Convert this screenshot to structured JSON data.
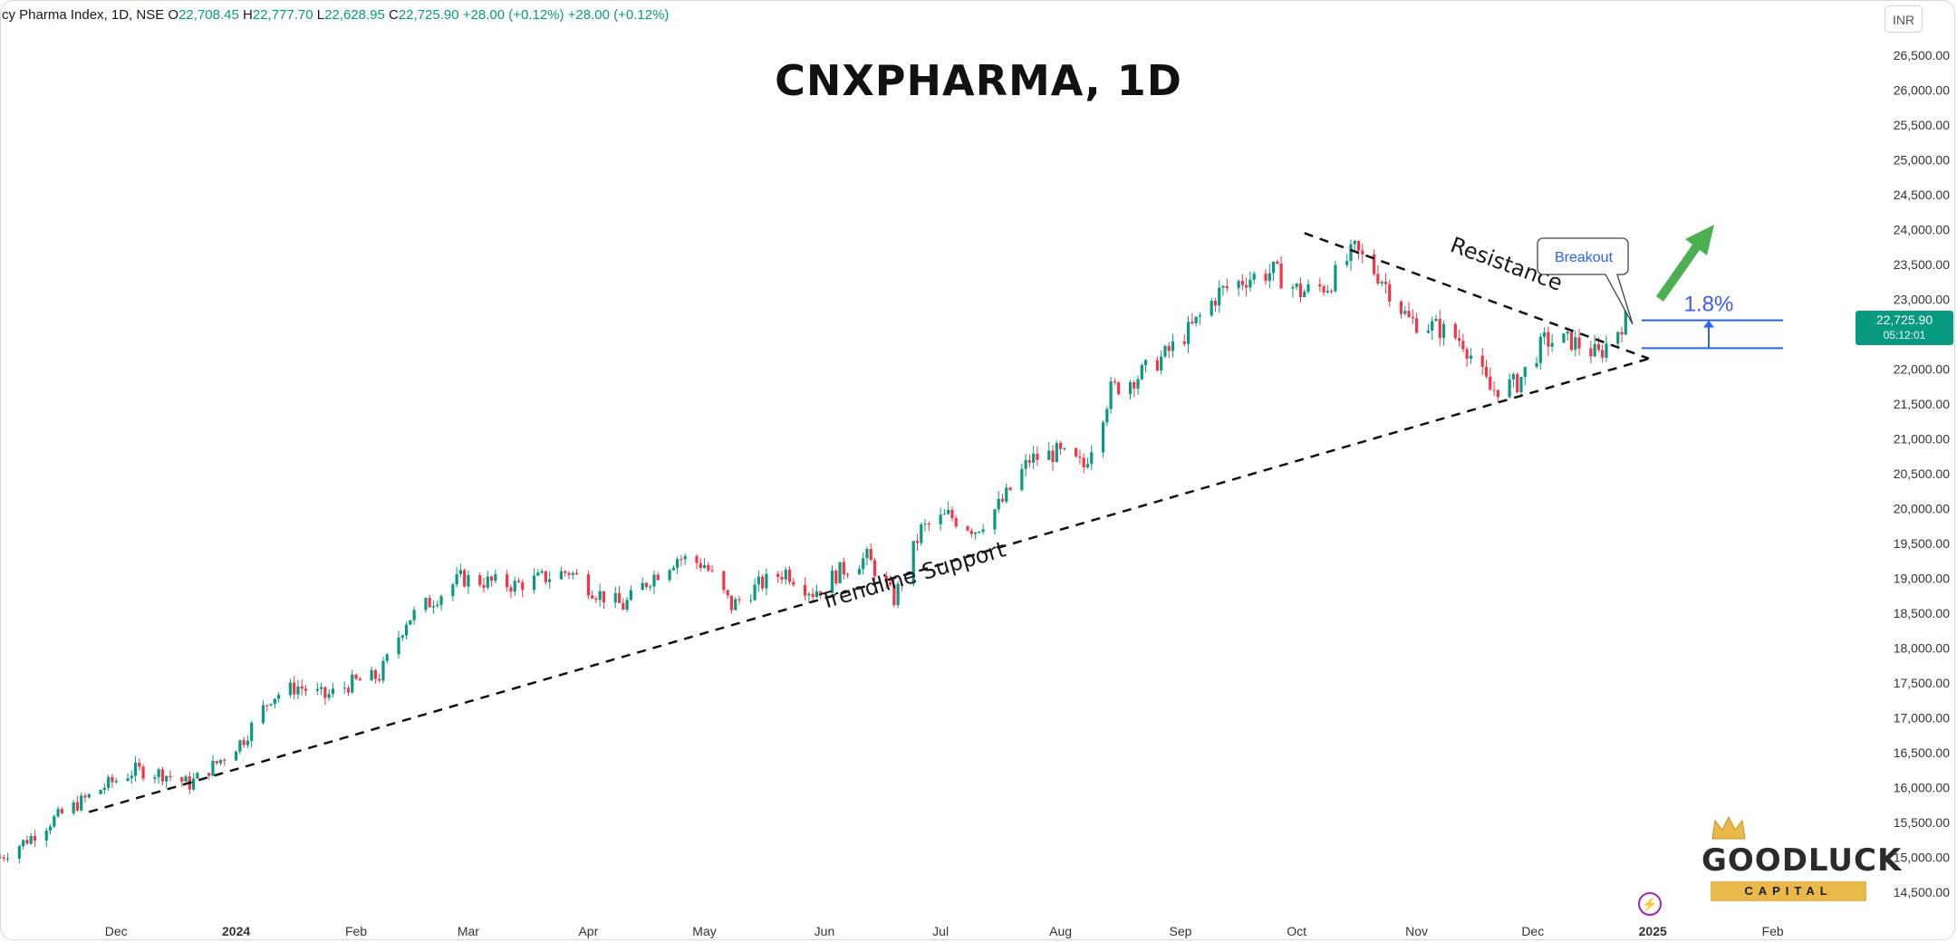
{
  "info_bar": {
    "name": "cy Pharma Index, 1D, NSE",
    "open_label": "O",
    "open": "22,708.45",
    "high_label": "H",
    "high": "22,777.70",
    "low_label": "L",
    "low": "22,628.95",
    "close_label": "C",
    "close": "22,725.90",
    "change": "+28.00 (+0.12%)",
    "change2": "+28.00 (+0.12%)"
  },
  "currency": "INR",
  "price_tag": {
    "price": "22,725.90",
    "timer": "05:12:01"
  },
  "logo": {
    "word": "GOODLUCK",
    "sub": "CAPITAL"
  },
  "colors": {
    "up": "#089981",
    "down": "#f23645",
    "accent": "#2962ff",
    "arrow": "#4caf50",
    "logo_gold": "#e8b84a"
  },
  "chart_data": {
    "type": "candlestick",
    "title": "CNXPHARMA, 1D",
    "y_ticks": [
      14500,
      15000,
      15500,
      16000,
      16500,
      17000,
      17500,
      18000,
      18500,
      19000,
      19500,
      20000,
      20500,
      21000,
      21500,
      22000,
      22500,
      23000,
      23500,
      24000,
      24500,
      25000,
      25500,
      26000,
      26500
    ],
    "y_tick_labels": [
      "14,500.00",
      "15,000.00",
      "15,500.00",
      "16,000.00",
      "16,500.00",
      "17,000.00",
      "17,500.00",
      "18,000.00",
      "18,500.00",
      "19,000.00",
      "19,500.00",
      "20,000.00",
      "20,500.00",
      "21,000.00",
      "21,500.00",
      "22,000.00",
      "22,500.00",
      "23,000.00",
      "23,500.00",
      "24,000.00",
      "24,500.00",
      "25,000.00",
      "25,500.00",
      "26,000.00",
      "26,500.00"
    ],
    "ylim": [
      14300,
      26800
    ],
    "x_ticks": [
      "Dec",
      "2024",
      "Feb",
      "Mar",
      "Apr",
      "May",
      "Jun",
      "Jul",
      "Aug",
      "Sep",
      "Oct",
      "Nov",
      "Dec",
      "2025",
      "Feb"
    ],
    "x_tick_dates": [
      "2023-12-01",
      "2024-01-01",
      "2024-02-01",
      "2024-03-01",
      "2024-04-01",
      "2024-05-01",
      "2024-06-01",
      "2024-07-01",
      "2024-08-01",
      "2024-09-01",
      "2024-10-01",
      "2024-11-01",
      "2024-12-01",
      "2025-01-01",
      "2025-02-01"
    ],
    "x_bold_ticks": [
      "2024",
      "2025"
    ],
    "trend_path": [
      [
        "2023-11-01",
        15000
      ],
      [
        "2023-11-08",
        15250
      ],
      [
        "2023-11-15",
        15550
      ],
      [
        "2023-11-22",
        15800
      ],
      [
        "2023-11-29",
        16050
      ],
      [
        "2023-12-06",
        16250
      ],
      [
        "2023-12-13",
        16200
      ],
      [
        "2023-12-20",
        16050
      ],
      [
        "2023-12-27",
        16350
      ],
      [
        "2024-01-03",
        16700
      ],
      [
        "2024-01-10",
        17300
      ],
      [
        "2024-01-17",
        17450
      ],
      [
        "2024-01-24",
        17300
      ],
      [
        "2024-01-31",
        17500
      ],
      [
        "2024-02-07",
        17600
      ],
      [
        "2024-02-14",
        18400
      ],
      [
        "2024-02-21",
        18700
      ],
      [
        "2024-02-28",
        19000
      ],
      [
        "2024-03-06",
        18950
      ],
      [
        "2024-03-13",
        18900
      ],
      [
        "2024-03-20",
        19000
      ],
      [
        "2024-03-27",
        19100
      ],
      [
        "2024-04-03",
        18800
      ],
      [
        "2024-04-10",
        18600
      ],
      [
        "2024-04-17",
        19000
      ],
      [
        "2024-04-24",
        19300
      ],
      [
        "2024-05-01",
        19200
      ],
      [
        "2024-05-08",
        18600
      ],
      [
        "2024-05-15",
        18900
      ],
      [
        "2024-05-22",
        19100
      ],
      [
        "2024-05-29",
        18800
      ],
      [
        "2024-06-05",
        19100
      ],
      [
        "2024-06-12",
        19300
      ],
      [
        "2024-06-19",
        18700
      ],
      [
        "2024-06-26",
        19700
      ],
      [
        "2024-07-03",
        19900
      ],
      [
        "2024-07-10",
        19700
      ],
      [
        "2024-07-17",
        20100
      ],
      [
        "2024-07-24",
        20700
      ],
      [
        "2024-07-31",
        20800
      ],
      [
        "2024-08-07",
        20600
      ],
      [
        "2024-08-14",
        21700
      ],
      [
        "2024-08-21",
        21900
      ],
      [
        "2024-08-28",
        22200
      ],
      [
        "2024-09-04",
        22600
      ],
      [
        "2024-09-11",
        23100
      ],
      [
        "2024-09-18",
        23300
      ],
      [
        "2024-09-25",
        23400
      ],
      [
        "2024-10-02",
        23100
      ],
      [
        "2024-10-09",
        23200
      ],
      [
        "2024-10-16",
        23700
      ],
      [
        "2024-10-23",
        23300
      ],
      [
        "2024-10-30",
        22700
      ],
      [
        "2024-11-06",
        22600
      ],
      [
        "2024-11-13",
        22400
      ],
      [
        "2024-11-20",
        21700
      ],
      [
        "2024-11-27",
        21800
      ],
      [
        "2024-12-04",
        22400
      ],
      [
        "2024-12-11",
        22400
      ],
      [
        "2024-12-18",
        22200
      ],
      [
        "2024-12-25",
        22725
      ]
    ],
    "annotations": {
      "support": {
        "label": "Trendline Support",
        "from": [
          "2023-11-24",
          15650
        ],
        "to": [
          "2024-12-31",
          22150
        ]
      },
      "resistance": {
        "label": "Resistance",
        "from": [
          "2024-10-03",
          23950
        ],
        "to": [
          "2024-12-31",
          22150
        ]
      },
      "breakout": {
        "label": "Breakout"
      },
      "range": {
        "label": "1.8%",
        "from": 22300,
        "to": 22700
      }
    }
  }
}
